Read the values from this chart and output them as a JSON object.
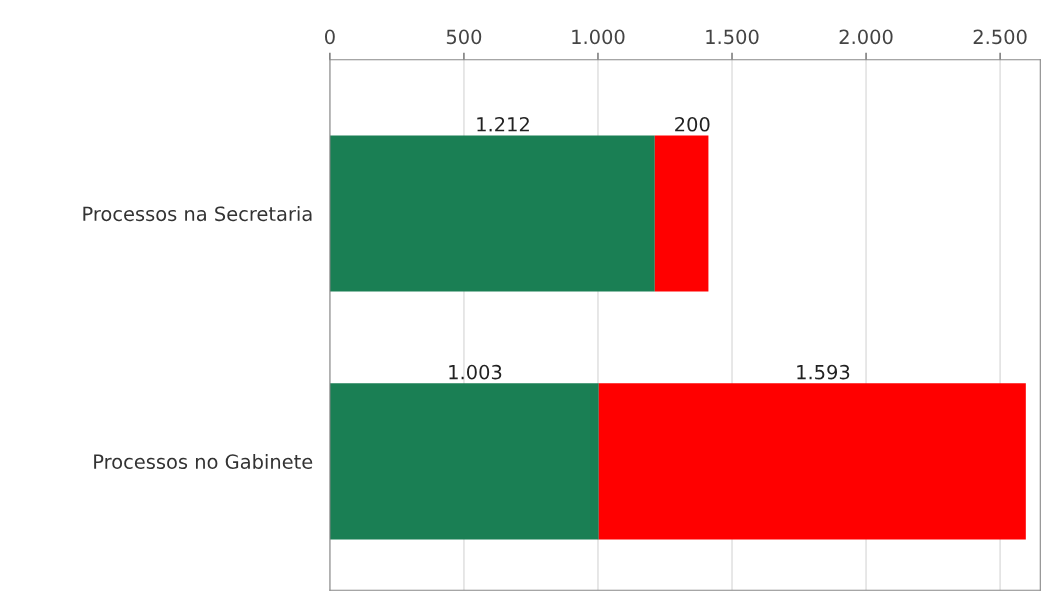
{
  "chart_data": {
    "type": "bar",
    "orientation": "horizontal",
    "stacked": true,
    "categories": [
      "Processos na Secretaria",
      "Processos no Gabinete"
    ],
    "series": [
      {
        "color": "#1a7f54",
        "values": [
          1212,
          1003
        ],
        "value_labels": [
          "1.212",
          "1.003"
        ]
      },
      {
        "color": "#ff0000",
        "values": [
          200,
          1593
        ],
        "value_labels": [
          "200",
          "1.593"
        ]
      }
    ],
    "xlim": [
      0,
      2650
    ],
    "xticks": [
      0,
      {
        "value": 500,
        "label": "500"
      },
      {
        "value": 1000,
        "label": "1.000"
      },
      {
        "value": 1500,
        "label": "1.500"
      },
      {
        "value": 2000,
        "label": "2.000"
      },
      {
        "value": 2500,
        "label": "2.500"
      }
    ],
    "grid": "x",
    "legend": false
  }
}
